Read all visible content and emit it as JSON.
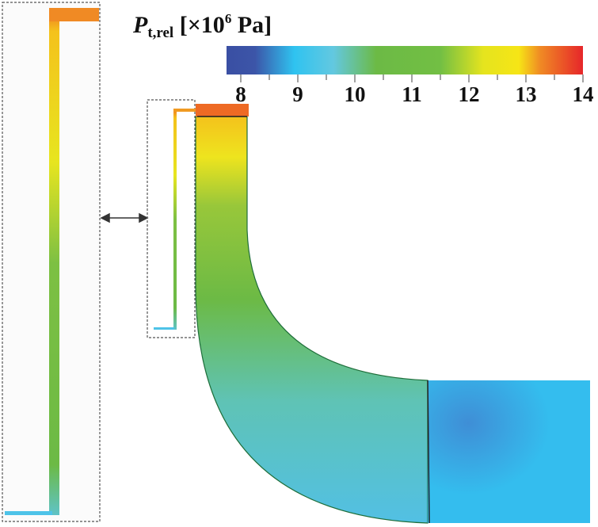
{
  "colorbar": {
    "symbol": "P",
    "subscript": "t,rel",
    "unit_prefix": "[×10",
    "unit_exponent": "6",
    "unit_suffix": " Pa]",
    "range": [
      7.75,
      14
    ],
    "ticks": [
      "8",
      "9",
      "10",
      "11",
      "12",
      "13",
      "14"
    ],
    "colors": [
      "#3a4fa3",
      "#2fc3f0",
      "#63c8e0",
      "#6cba45",
      "#72bf44",
      "#e5e41e",
      "#f6e516",
      "#f08a24",
      "#e6262a"
    ]
  }
}
